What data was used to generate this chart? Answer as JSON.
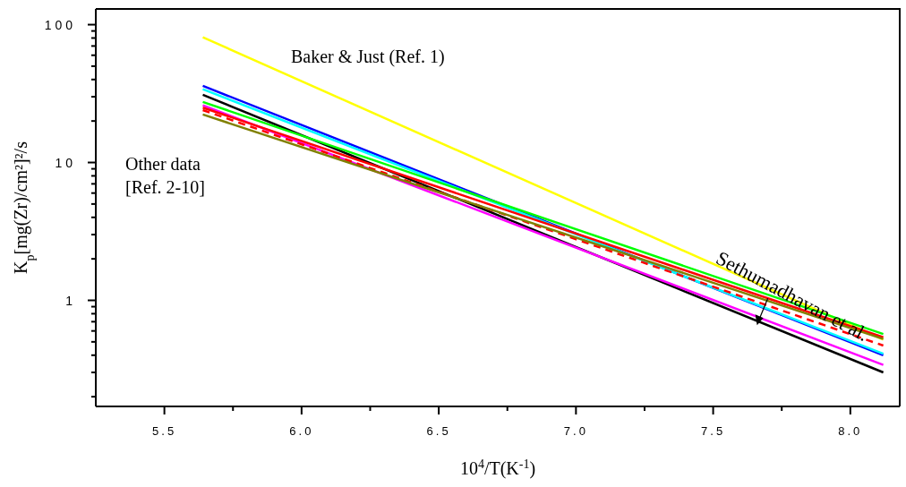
{
  "chart_data": {
    "type": "line",
    "xlabel": "10$^{4}$/T(K$^{-1}$)",
    "ylabel": "K$_{p}$[mg(Zr)/cm²]²/s",
    "annotations": [
      "Baker & Just (Ref. 1)",
      "Other data\n[Ref. 2-10]",
      {
        "text": "Sethumadhavan et al.",
        "x": 7.66,
        "y": 0.66
      }
    ],
    "log": "y",
    "grid": false,
    "legend": false,
    "marker": "none",
    "xlim": [
      5.25,
      8.18
    ],
    "xticks": [
      5.5,
      {
        "value": 5.75,
        "label": null
      },
      {
        "value": 6,
        "label": "6.0"
      },
      {
        "value": 6.25,
        "label": null
      },
      6.5,
      {
        "value": 6.75,
        "label": null
      },
      {
        "value": 7,
        "label": "7.0"
      },
      {
        "value": 7.25,
        "label": null
      },
      7.5,
      {
        "value": 7.75,
        "label": null
      },
      {
        "value": 8,
        "label": "8.0"
      }
    ],
    "ylim": [
      0.17,
      130
    ],
    "yticks": [
      {
        "value": 0.2,
        "label": null
      },
      {
        "value": 0.3,
        "label": null
      },
      {
        "value": 0.4,
        "label": null
      },
      {
        "value": 0.5,
        "label": null
      },
      {
        "value": 0.6,
        "label": null
      },
      {
        "value": 0.7,
        "label": null
      },
      {
        "value": 0.8,
        "label": null
      },
      {
        "value": 0.9,
        "label": null
      },
      1,
      {
        "value": 2,
        "label": null
      },
      {
        "value": 3,
        "label": null
      },
      {
        "value": 4,
        "label": null
      },
      {
        "value": 5,
        "label": null
      },
      {
        "value": 6,
        "label": null
      },
      {
        "value": 7,
        "label": null
      },
      {
        "value": 8,
        "label": null
      },
      {
        "value": 9,
        "label": null
      },
      10,
      {
        "value": 20,
        "label": null
      },
      {
        "value": 30,
        "label": null
      },
      {
        "value": 40,
        "label": null
      },
      {
        "value": 50,
        "label": null
      },
      {
        "value": 60,
        "label": null
      },
      {
        "value": 70,
        "label": null
      },
      {
        "value": 80,
        "label": null
      },
      {
        "value": 90,
        "label": null
      },
      100
    ],
    "x": [
      5.64,
      8.12
    ],
    "series": [
      {
        "color": "#ffff00",
        "values": [
          81,
          0.52
        ]
      },
      {
        "color": "#0000ff",
        "values": [
          36,
          0.4
        ]
      },
      {
        "color": "#00ffff",
        "values": [
          34,
          0.41
        ]
      },
      {
        "color": "#000000",
        "values": [
          31,
          0.3
        ]
      },
      {
        "color": "#00ff00",
        "values": [
          27.5,
          0.57
        ]
      },
      {
        "color": "#ff00ff",
        "values": [
          26,
          0.34
        ]
      },
      {
        "color": "#ff0000",
        "values": [
          25,
          0.54
        ]
      },
      {
        "color": "#ff0000",
        "values": [
          24,
          0.47
        ],
        "line_style": "dashed"
      },
      {
        "color": "#808000",
        "values": [
          22.3,
          0.525
        ]
      }
    ]
  }
}
